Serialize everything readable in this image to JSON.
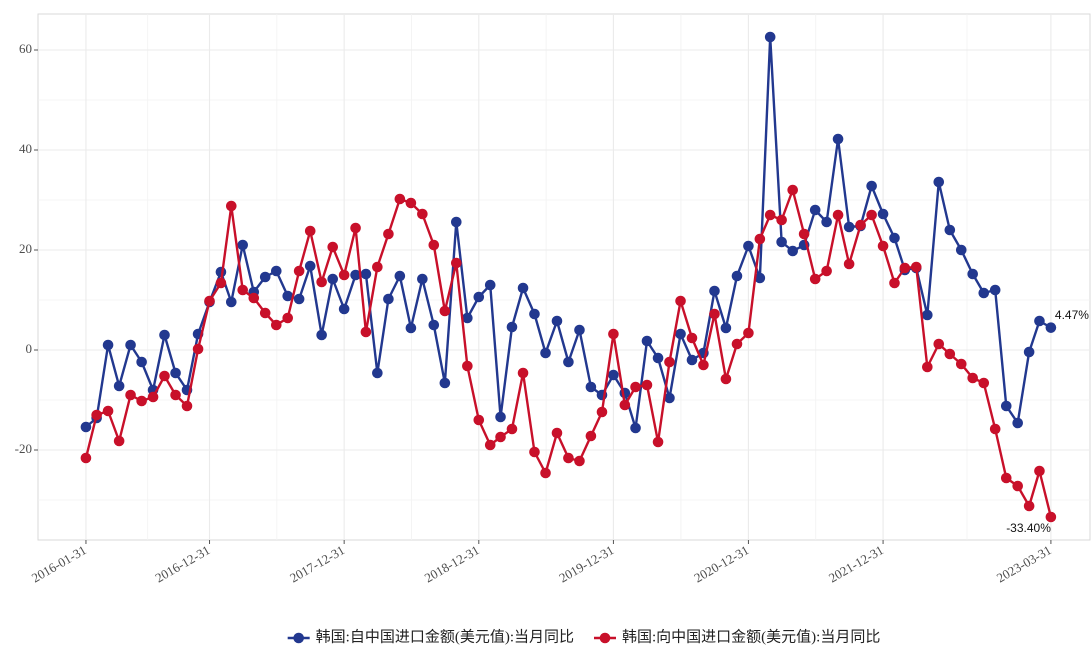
{
  "chart_data": {
    "type": "line",
    "x": [
      "2016-01-31",
      "2016-02-29",
      "2016-03-31",
      "2016-04-30",
      "2016-05-31",
      "2016-06-30",
      "2016-07-31",
      "2016-08-31",
      "2016-09-30",
      "2016-10-31",
      "2016-11-30",
      "2016-12-31",
      "2017-01-31",
      "2017-02-28",
      "2017-03-31",
      "2017-04-30",
      "2017-05-31",
      "2017-06-30",
      "2017-07-31",
      "2017-08-31",
      "2017-09-30",
      "2017-10-31",
      "2017-11-30",
      "2017-12-31",
      "2018-01-31",
      "2018-02-28",
      "2018-03-31",
      "2018-04-30",
      "2018-05-31",
      "2018-06-30",
      "2018-07-31",
      "2018-08-31",
      "2018-09-30",
      "2018-10-31",
      "2018-11-30",
      "2018-12-31",
      "2019-01-31",
      "2019-02-28",
      "2019-03-31",
      "2019-04-30",
      "2019-05-31",
      "2019-06-30",
      "2019-07-31",
      "2019-08-31",
      "2019-09-30",
      "2019-10-31",
      "2019-11-30",
      "2019-12-31",
      "2020-01-31",
      "2020-02-29",
      "2020-03-31",
      "2020-04-30",
      "2020-05-31",
      "2020-06-30",
      "2020-07-31",
      "2020-08-31",
      "2020-09-30",
      "2020-10-31",
      "2020-11-30",
      "2020-12-31",
      "2021-01-31",
      "2021-02-28",
      "2021-03-31",
      "2021-04-30",
      "2021-05-31",
      "2021-06-30",
      "2021-07-31",
      "2021-08-31",
      "2021-09-30",
      "2021-10-31",
      "2021-11-30",
      "2021-12-31",
      "2022-01-31",
      "2022-02-28",
      "2022-03-31",
      "2022-04-30",
      "2022-05-31",
      "2022-06-30",
      "2022-07-31",
      "2022-08-31",
      "2022-09-30",
      "2022-10-31",
      "2022-11-30",
      "2022-12-31",
      "2023-01-31",
      "2023-02-28",
      "2023-03-31"
    ],
    "series": [
      {
        "name": "韩国:自中国进口金额(美元值):当月同比",
        "color": "#22388f",
        "values": [
          -15.4,
          -13.6,
          1.0,
          -7.2,
          1.0,
          -2.4,
          -8.0,
          3.0,
          -4.6,
          -8.0,
          3.2,
          9.6,
          15.6,
          9.6,
          21.0,
          11.6,
          14.6,
          15.8,
          10.8,
          10.2,
          16.8,
          3.0,
          14.2,
          8.2,
          15.0,
          15.2,
          -4.6,
          10.2,
          14.8,
          4.4,
          14.2,
          5.0,
          -6.6,
          25.6,
          6.4,
          10.6,
          13.0,
          -13.4,
          4.6,
          12.4,
          7.2,
          -0.6,
          5.8,
          -2.4,
          4.0,
          -7.4,
          -9.0,
          -5.0,
          -8.6,
          -15.6,
          1.8,
          -1.6,
          -9.6,
          3.2,
          -2.0,
          -0.6,
          11.8,
          4.4,
          14.8,
          20.8,
          14.4,
          62.6,
          21.6,
          19.8,
          21.0,
          28.0,
          25.6,
          42.2,
          24.6,
          24.8,
          32.8,
          27.2,
          22.4,
          16.0,
          16.4,
          7.0,
          33.6,
          24.0,
          20.0,
          15.2,
          11.4,
          12.0,
          -11.2,
          -14.6,
          -0.4,
          5.8,
          4.47
        ],
        "value_labels": [
          null,
          null,
          null,
          null,
          null,
          null,
          null,
          null,
          null,
          null,
          null,
          null,
          null,
          null,
          null,
          null,
          null,
          null,
          null,
          null,
          null,
          null,
          null,
          null,
          null,
          null,
          null,
          null,
          null,
          null,
          null,
          null,
          null,
          null,
          null,
          null,
          null,
          null,
          null,
          null,
          null,
          null,
          null,
          null,
          null,
          null,
          null,
          null,
          null,
          null,
          null,
          null,
          null,
          null,
          null,
          null,
          null,
          null,
          null,
          null,
          null,
          null,
          null,
          null,
          null,
          null,
          null,
          null,
          null,
          null,
          null,
          null,
          null,
          null,
          null,
          null,
          null,
          null,
          null,
          null,
          null,
          null,
          null,
          null,
          null,
          null,
          "4.47%"
        ]
      },
      {
        "name": "韩国:向中国进口金额(美元值):当月同比",
        "color": "#c8102a",
        "values": [
          -21.6,
          -13.0,
          -12.2,
          -18.2,
          -9.0,
          -10.2,
          -9.4,
          -5.2,
          -9.0,
          -11.2,
          0.2,
          9.8,
          13.4,
          28.8,
          12.0,
          10.4,
          7.4,
          5.0,
          6.4,
          15.8,
          23.8,
          13.6,
          20.6,
          15.0,
          24.4,
          3.6,
          16.6,
          23.2,
          30.2,
          29.4,
          27.2,
          21.0,
          7.8,
          17.4,
          -3.2,
          -14.0,
          -19.0,
          -17.4,
          -15.8,
          -4.6,
          -20.4,
          -24.6,
          -16.6,
          -21.6,
          -22.2,
          -17.2,
          -12.4,
          3.2,
          -11.0,
          -7.4,
          -7.0,
          -18.4,
          -2.4,
          9.8,
          2.4,
          -3.0,
          7.2,
          -5.8,
          1.2,
          3.4,
          22.2,
          27.0,
          26.0,
          32.0,
          23.2,
          14.2,
          15.8,
          27.0,
          17.2,
          25.0,
          27.0,
          20.8,
          13.4,
          16.4,
          16.6,
          -3.4,
          1.2,
          -0.8,
          -2.8,
          -5.6,
          -6.6,
          -15.8,
          -25.6,
          -27.2,
          -31.2,
          -24.2,
          -33.4
        ],
        "value_labels": [
          null,
          null,
          null,
          null,
          null,
          null,
          null,
          null,
          null,
          null,
          null,
          null,
          null,
          null,
          null,
          null,
          null,
          null,
          null,
          null,
          null,
          null,
          null,
          null,
          null,
          null,
          null,
          null,
          null,
          null,
          null,
          null,
          null,
          null,
          null,
          null,
          null,
          null,
          null,
          null,
          null,
          null,
          null,
          null,
          null,
          null,
          null,
          null,
          null,
          null,
          null,
          null,
          null,
          null,
          null,
          null,
          null,
          null,
          null,
          null,
          null,
          null,
          null,
          null,
          null,
          null,
          null,
          null,
          null,
          null,
          null,
          null,
          null,
          null,
          null,
          null,
          null,
          null,
          null,
          null,
          null,
          null,
          null,
          null,
          null,
          null,
          "-33.40%"
        ]
      }
    ],
    "xlim": [
      "2015-09-23",
      "2023-07-15"
    ],
    "xticks": [
      "2016-01-31",
      "2016-12-31",
      "2017-12-31",
      "2018-12-31",
      "2019-12-31",
      "2020-12-31",
      "2021-12-31",
      "2023-03-31"
    ],
    "ylim": [
      -38,
      67.2
    ],
    "yticks": [
      -20,
      0,
      20,
      40,
      60
    ],
    "grid": true,
    "legend": "bottom"
  }
}
